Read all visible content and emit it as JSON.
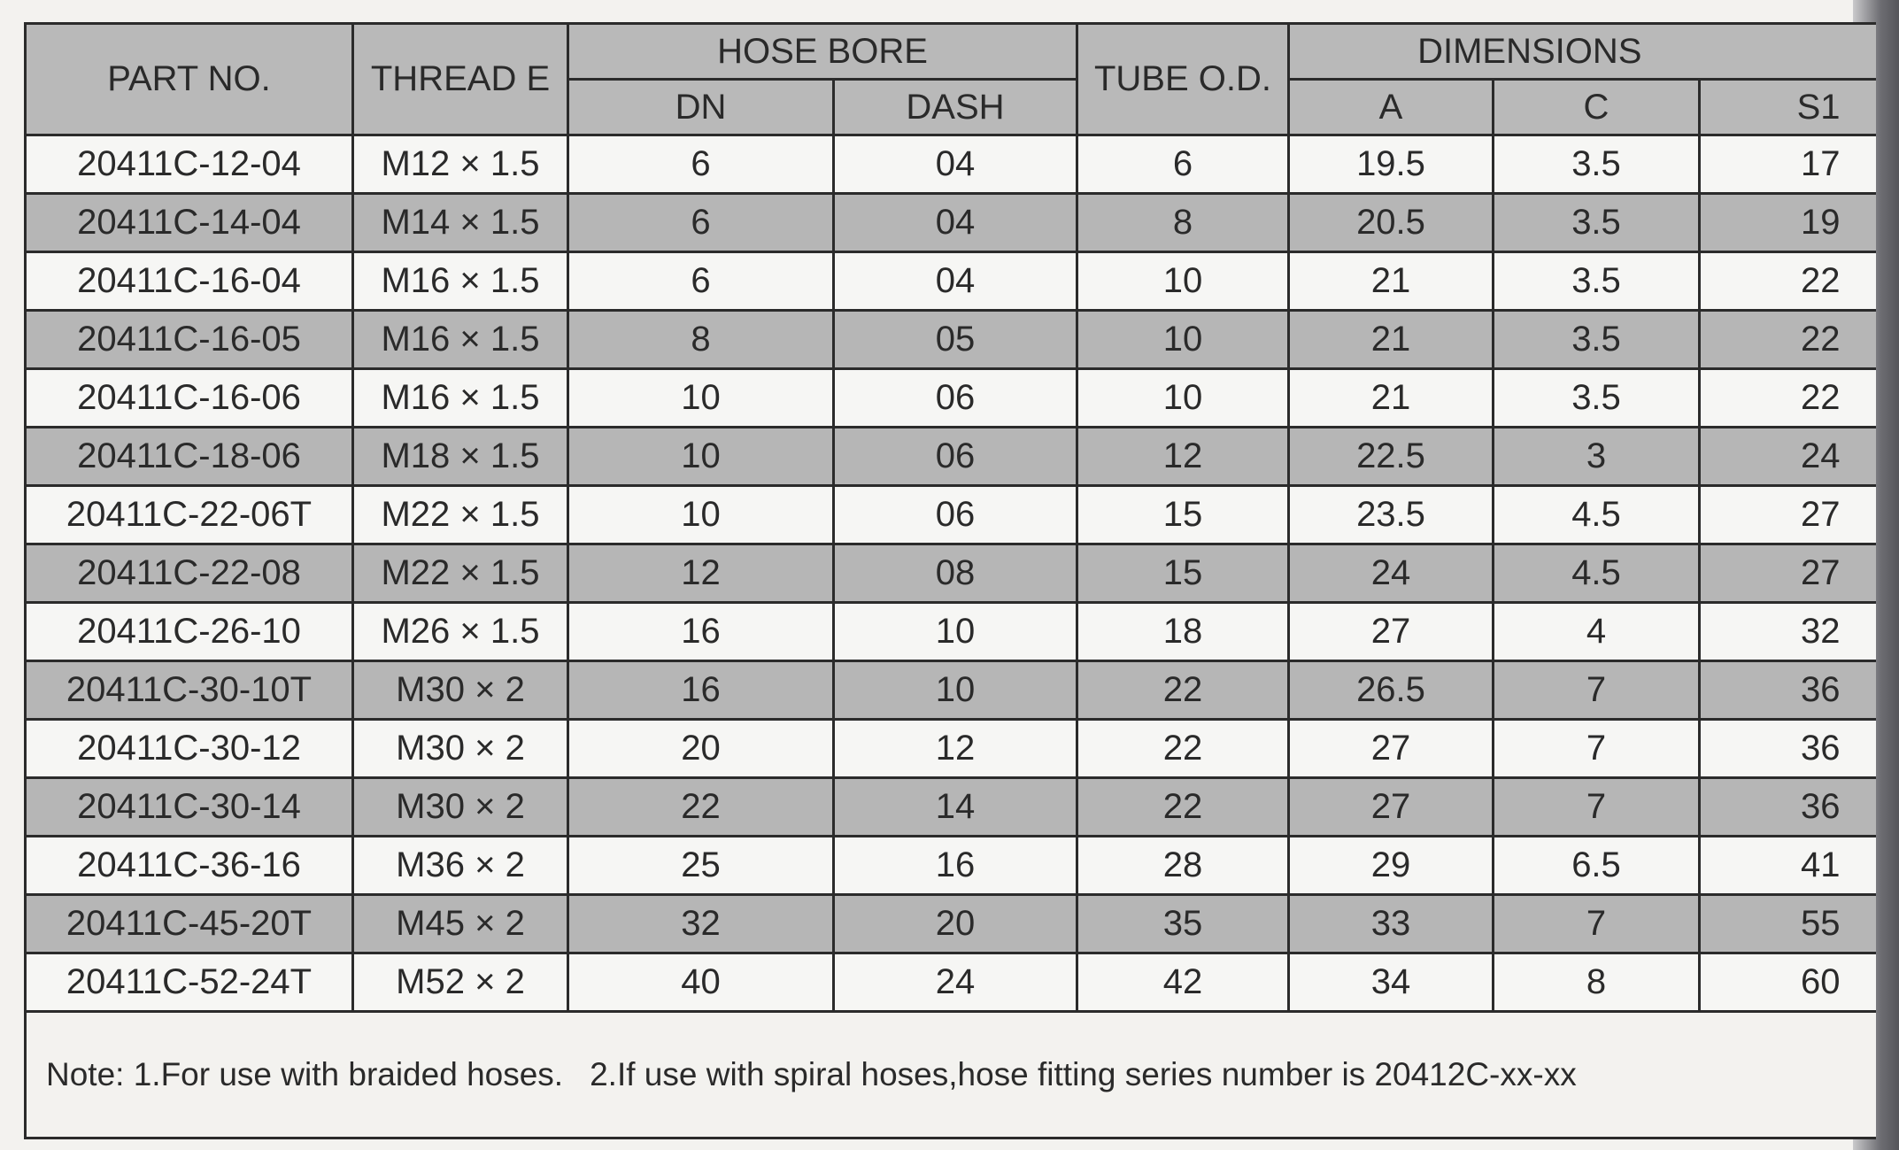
{
  "headers": {
    "part_no": "PART NO.",
    "thread": "THREAD  E",
    "hose_bore": "HOSE BORE",
    "dn": "DN",
    "dash": "DASH",
    "tube_od": "TUBE O.D.",
    "dimensions": "DIMENSIONS",
    "a": "A",
    "c": "C",
    "s1": "S1"
  },
  "rows": [
    [
      "20411C-12-04",
      "M12 × 1.5",
      "6",
      "04",
      "6",
      "19.5",
      "3.5",
      "17"
    ],
    [
      "20411C-14-04",
      "M14 × 1.5",
      "6",
      "04",
      "8",
      "20.5",
      "3.5",
      "19"
    ],
    [
      "20411C-16-04",
      "M16 × 1.5",
      "6",
      "04",
      "10",
      "21",
      "3.5",
      "22"
    ],
    [
      "20411C-16-05",
      "M16 × 1.5",
      "8",
      "05",
      "10",
      "21",
      "3.5",
      "22"
    ],
    [
      "20411C-16-06",
      "M16 × 1.5",
      "10",
      "06",
      "10",
      "21",
      "3.5",
      "22"
    ],
    [
      "20411C-18-06",
      "M18 × 1.5",
      "10",
      "06",
      "12",
      "22.5",
      "3",
      "24"
    ],
    [
      "20411C-22-06T",
      "M22 × 1.5",
      "10",
      "06",
      "15",
      "23.5",
      "4.5",
      "27"
    ],
    [
      "20411C-22-08",
      "M22 × 1.5",
      "12",
      "08",
      "15",
      "24",
      "4.5",
      "27"
    ],
    [
      "20411C-26-10",
      "M26 × 1.5",
      "16",
      "10",
      "18",
      "27",
      "4",
      "32"
    ],
    [
      "20411C-30-10T",
      "M30 × 2",
      "16",
      "10",
      "22",
      "26.5",
      "7",
      "36"
    ],
    [
      "20411C-30-12",
      "M30 × 2",
      "20",
      "12",
      "22",
      "27",
      "7",
      "36"
    ],
    [
      "20411C-30-14",
      "M30 × 2",
      "22",
      "14",
      "22",
      "27",
      "7",
      "36"
    ],
    [
      "20411C-36-16",
      "M36 × 2",
      "25",
      "16",
      "28",
      "29",
      "6.5",
      "41"
    ],
    [
      "20411C-45-20T",
      "M45 × 2",
      "32",
      "20",
      "35",
      "33",
      "7",
      "55"
    ],
    [
      "20411C-52-24T",
      "M52 × 2",
      "40",
      "24",
      "42",
      "34",
      "8",
      "60"
    ]
  ],
  "note": {
    "label": "Note: 1.For use with braided hoses.",
    "item2": "2.If use with spiral hoses,hose fitting series number is 20412C-xx-xx"
  }
}
